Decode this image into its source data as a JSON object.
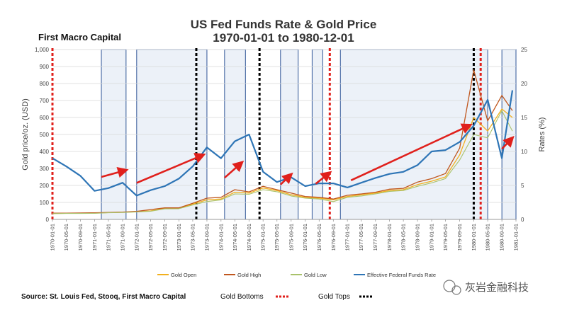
{
  "brand": "First Macro Capital",
  "footer": {
    "source": "Source: St. Louis Fed, Stooq, First Macro Capital",
    "bottoms_label": "Gold Bottoms",
    "tops_label": "Gold Tops"
  },
  "watermark": "灰岩金融科技",
  "colors": {
    "gold_open": "#f2b01e",
    "gold_high": "#c0571e",
    "gold_low": "#a9c26b",
    "fed_funds": "#2e75b6",
    "bottoms": "#e0201c",
    "tops": "#000000",
    "arrows": "#e0201c",
    "shade_fill": "#dce6f2",
    "shade_stroke": "#2f5597"
  },
  "chart_data": {
    "type": "line",
    "title": "US Fed Funds Rate & Gold Price",
    "subtitle": "1970-01-01 to 1980-12-01",
    "ylabel": "Gold price/oz. (USD)",
    "y2label": "Rates (%)",
    "ylim": [
      0,
      1000
    ],
    "y2lim": [
      0,
      25
    ],
    "yticks": [
      "0",
      "100",
      "200",
      "300",
      "400",
      "500",
      "600",
      "700",
      "800",
      "900",
      "1,000"
    ],
    "y2ticks": [
      "0",
      "5",
      "10",
      "15",
      "20",
      "25"
    ],
    "grid": true,
    "legend_position": "bottom",
    "xticks": [
      "1970-01-01",
      "1970-05-01",
      "1970-09-01",
      "1971-01-01",
      "1971-05-01",
      "1971-09-01",
      "1972-01-01",
      "1972-05-01",
      "1972-09-01",
      "1973-01-01",
      "1973-05-01",
      "1973-09-01",
      "1974-01-01",
      "1974-05-01",
      "1974-09-01",
      "1975-01-01",
      "1975-05-01",
      "1975-09-01",
      "1976-01-01",
      "1976-05-01",
      "1976-09-01",
      "1977-01-01",
      "1977-05-01",
      "1977-09-01",
      "1978-01-01",
      "1978-05-01",
      "1978-09-01",
      "1979-01-01",
      "1979-05-01",
      "1979-09-01",
      "1980-01-01",
      "1980-05-01",
      "1980-09-01",
      "1981-01-01"
    ],
    "x": [
      "1970-01",
      "1970-05",
      "1970-09",
      "1971-01",
      "1971-05",
      "1971-09",
      "1972-01",
      "1972-05",
      "1972-09",
      "1973-01",
      "1973-05",
      "1973-09",
      "1974-01",
      "1974-05",
      "1974-09",
      "1975-01",
      "1975-05",
      "1975-09",
      "1976-01",
      "1976-05",
      "1976-09",
      "1977-01",
      "1977-05",
      "1977-09",
      "1978-01",
      "1978-05",
      "1978-09",
      "1979-01",
      "1979-05",
      "1979-09",
      "1980-01",
      "1980-05",
      "1980-09",
      "1980-12"
    ],
    "series": [
      {
        "name": "Gold Open",
        "axis": "left",
        "values": [
          35,
          36,
          36,
          37,
          40,
          42,
          45,
          50,
          65,
          65,
          90,
          115,
          120,
          160,
          155,
          185,
          170,
          145,
          130,
          125,
          115,
          135,
          145,
          155,
          170,
          175,
          205,
          225,
          250,
          380,
          600,
          520,
          650,
          600
        ]
      },
      {
        "name": "Gold High",
        "axis": "left",
        "values": [
          37,
          37,
          38,
          39,
          41,
          43,
          47,
          58,
          68,
          68,
          95,
          125,
          130,
          175,
          162,
          195,
          175,
          155,
          135,
          130,
          120,
          142,
          150,
          160,
          178,
          183,
          220,
          240,
          270,
          420,
          880,
          580,
          730,
          640
        ]
      },
      {
        "name": "Gold Low",
        "axis": "left",
        "values": [
          34,
          35,
          35,
          36,
          39,
          41,
          44,
          48,
          62,
          63,
          85,
          105,
          115,
          150,
          148,
          175,
          163,
          138,
          125,
          120,
          105,
          130,
          138,
          150,
          165,
          170,
          195,
          215,
          240,
          350,
          500,
          480,
          640,
          520
        ]
      },
      {
        "name": "Effective Federal Funds Rate",
        "axis": "right",
        "values": [
          9.0,
          7.8,
          6.4,
          4.2,
          4.6,
          5.4,
          3.5,
          4.3,
          4.9,
          6.0,
          7.8,
          10.6,
          9.0,
          11.5,
          12.5,
          7.0,
          5.5,
          6.2,
          4.9,
          5.3,
          5.3,
          4.7,
          5.4,
          6.1,
          6.7,
          7.0,
          8.0,
          10.0,
          10.2,
          11.4,
          13.8,
          17.6,
          9.0,
          19.0
        ]
      }
    ],
    "shaded_periods": [
      [
        "1971-03",
        "1971-10"
      ],
      [
        "1972-01",
        "1973-09"
      ],
      [
        "1974-02",
        "1974-08"
      ],
      [
        "1975-06",
        "1975-11"
      ],
      [
        "1976-03",
        "1976-06"
      ],
      [
        "1976-11",
        "1980-05"
      ],
      [
        "1980-09",
        "1981-01"
      ]
    ],
    "gold_bottoms": [
      "1970-01",
      "1976-08",
      "1980-03"
    ],
    "gold_tops": [
      "1973-06",
      "1974-12",
      "1980-01"
    ],
    "arrows": [
      {
        "from": [
          "1971-03",
          250
        ],
        "to": [
          "1971-10",
          290
        ]
      },
      {
        "from": [
          "1972-01",
          215
        ],
        "to": [
          "1973-08",
          380
        ]
      },
      {
        "from": [
          "1974-02",
          245
        ],
        "to": [
          "1974-07",
          335
        ]
      },
      {
        "from": [
          "1975-06",
          205
        ],
        "to": [
          "1975-09",
          265
        ]
      },
      {
        "from": [
          "1976-04",
          210
        ],
        "to": [
          "1976-08",
          275
        ]
      },
      {
        "from": [
          "1977-02",
          230
        ],
        "to": [
          "1979-12",
          555
        ]
      },
      {
        "from": [
          "1980-09",
          415
        ],
        "to": [
          "1980-12",
          480
        ]
      }
    ]
  }
}
